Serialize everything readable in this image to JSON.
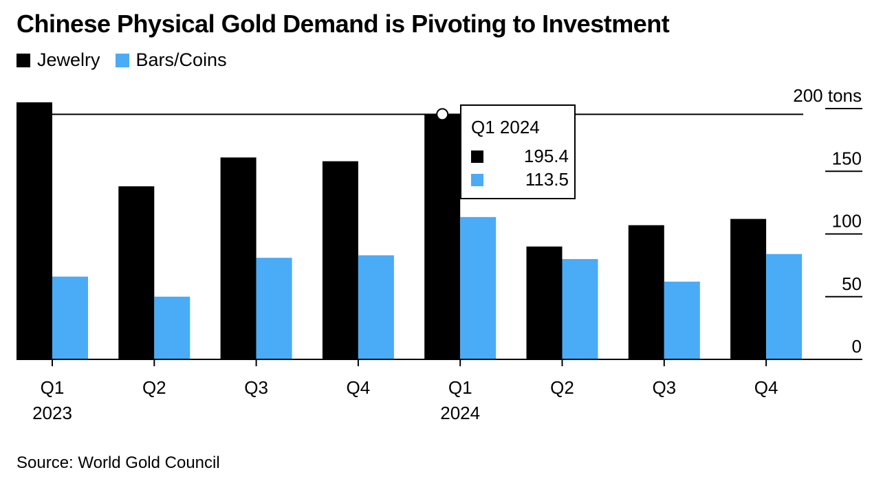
{
  "chart_data": {
    "type": "bar",
    "title": "Chinese Physical Gold Demand is Pivoting to Investment",
    "source": "Source: World Gold Council",
    "categories": [
      "Q1",
      "Q2",
      "Q3",
      "Q4",
      "Q1",
      "Q2",
      "Q3",
      "Q4"
    ],
    "year_labels": [
      "2023",
      "",
      "",
      "",
      "2024",
      "",
      "",
      ""
    ],
    "series": [
      {
        "name": "Jewelry",
        "color": "#000000",
        "values": [
          205,
          138,
          161,
          158,
          195.4,
          90,
          107,
          112
        ]
      },
      {
        "name": "Bars/Coins",
        "color": "#4aabf7",
        "values": [
          66,
          50,
          81,
          83,
          113.5,
          80,
          62,
          84
        ]
      }
    ],
    "y_axis": {
      "ticks": [
        0,
        50,
        100,
        150,
        200
      ],
      "tick_labels": [
        "0",
        "50",
        "100",
        "150",
        "200 tons"
      ],
      "ylim": [
        0,
        205
      ],
      "position": "right"
    },
    "reference_line": {
      "value": 195.4
    },
    "tooltip": {
      "title": "Q1 2024",
      "highlight_index": 4,
      "rows": [
        {
          "series": "Jewelry",
          "value": "195.4",
          "color": "#000000"
        },
        {
          "series": "Bars/Coins",
          "value": "113.5",
          "color": "#4aabf7"
        }
      ]
    },
    "legend_placement": "top-left",
    "grid": false
  }
}
